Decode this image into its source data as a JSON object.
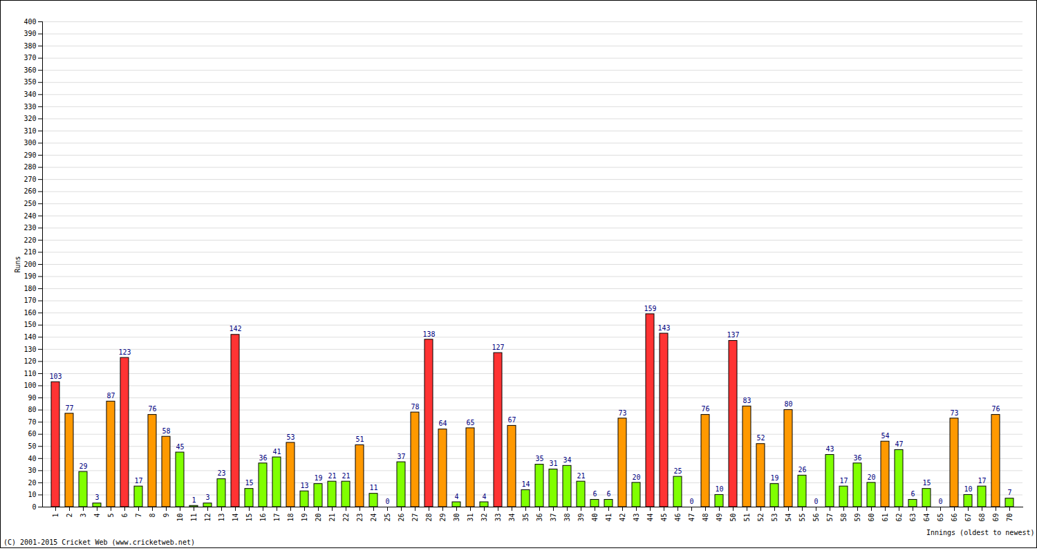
{
  "chart_data": {
    "type": "bar",
    "caption": "(C) 2001-2015 Cricket Web (www.cricketweb.net)",
    "x_label": "Innings (oldest to newest)",
    "y_label": "Runs",
    "categories": [
      "1",
      "2",
      "3",
      "4",
      "5",
      "6",
      "7",
      "8",
      "9",
      "10",
      "11",
      "12",
      "13",
      "14",
      "15",
      "16",
      "17",
      "18",
      "19",
      "20",
      "21",
      "22",
      "23",
      "24",
      "25",
      "26",
      "27",
      "28",
      "29",
      "30",
      "31",
      "32",
      "33",
      "34",
      "35",
      "36",
      "37",
      "38",
      "39",
      "40",
      "41",
      "42",
      "43",
      "44",
      "45",
      "46",
      "47",
      "48",
      "49",
      "50",
      "51",
      "52",
      "53",
      "54",
      "55",
      "56",
      "57",
      "58",
      "59",
      "60",
      "61",
      "62",
      "63",
      "64",
      "65",
      "66",
      "67",
      "68",
      "69",
      "70"
    ],
    "values": [
      103,
      77,
      29,
      3,
      87,
      123,
      17,
      76,
      58,
      45,
      1,
      3,
      23,
      142,
      15,
      36,
      41,
      53,
      13,
      19,
      21,
      21,
      51,
      11,
      0,
      37,
      78,
      138,
      64,
      4,
      65,
      4,
      127,
      67,
      14,
      35,
      31,
      34,
      21,
      6,
      6,
      73,
      20,
      159,
      143,
      25,
      0,
      76,
      10,
      137,
      83,
      52,
      19,
      80,
      26,
      0,
      43,
      17,
      36,
      20,
      54,
      47,
      6,
      15,
      0,
      73,
      10,
      17,
      76,
      7
    ],
    "colors": [
      "#ff3333",
      "#ff9900",
      "#80ff00",
      "#80ff00",
      "#ff9900",
      "#ff3333",
      "#80ff00",
      "#ff9900",
      "#ff9900",
      "#80ff00",
      "#80ff00",
      "#80ff00",
      "#80ff00",
      "#ff3333",
      "#80ff00",
      "#80ff00",
      "#80ff00",
      "#ff9900",
      "#80ff00",
      "#80ff00",
      "#80ff00",
      "#80ff00",
      "#ff9900",
      "#80ff00",
      "#80ff00",
      "#80ff00",
      "#ff9900",
      "#ff3333",
      "#ff9900",
      "#80ff00",
      "#ff9900",
      "#80ff00",
      "#ff3333",
      "#ff9900",
      "#80ff00",
      "#80ff00",
      "#80ff00",
      "#80ff00",
      "#80ff00",
      "#80ff00",
      "#80ff00",
      "#ff9900",
      "#80ff00",
      "#ff3333",
      "#ff3333",
      "#80ff00",
      "#80ff00",
      "#ff9900",
      "#80ff00",
      "#ff3333",
      "#ff9900",
      "#ff9900",
      "#80ff00",
      "#ff9900",
      "#80ff00",
      "#80ff00",
      "#80ff00",
      "#80ff00",
      "#80ff00",
      "#80ff00",
      "#ff9900",
      "#80ff00",
      "#80ff00",
      "#80ff00",
      "#80ff00",
      "#ff9900",
      "#80ff00",
      "#80ff00",
      "#ff9900",
      "#80ff00"
    ],
    "ylim": [
      0,
      400
    ],
    "yticks": [
      0,
      10,
      20,
      30,
      40,
      50,
      60,
      70,
      80,
      90,
      100,
      110,
      120,
      130,
      140,
      150,
      160,
      170,
      180,
      190,
      200,
      210,
      220,
      230,
      240,
      250,
      260,
      270,
      280,
      290,
      300,
      310,
      320,
      330,
      340,
      350,
      360,
      370,
      380,
      390,
      400
    ],
    "grid": true,
    "data_labels": true
  }
}
